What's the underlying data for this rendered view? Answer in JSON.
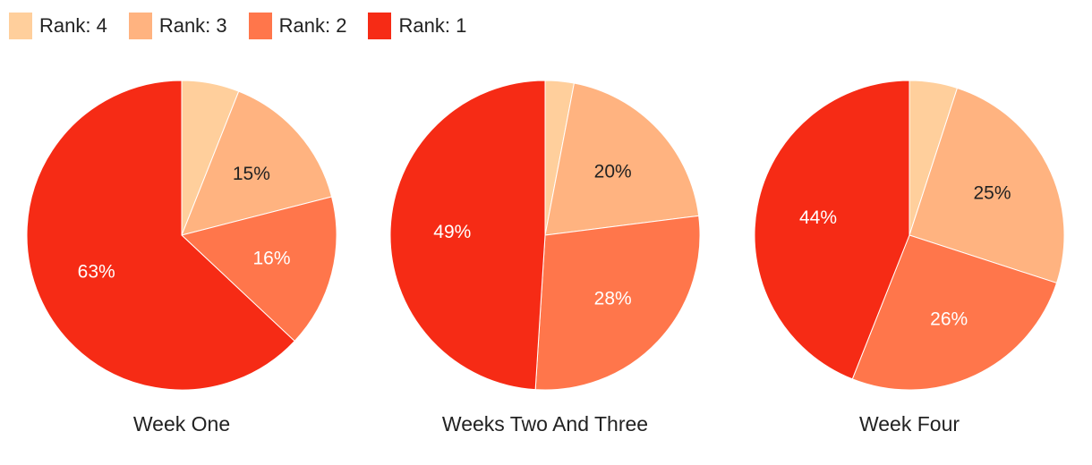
{
  "chart_data": [
    {
      "type": "pie",
      "title": "Week One",
      "slices": [
        {
          "label": "Rank: 4",
          "value": 6
        },
        {
          "label": "Rank: 3",
          "value": 15
        },
        {
          "label": "Rank: 2",
          "value": 16
        },
        {
          "label": "Rank: 1",
          "value": 63
        }
      ],
      "data_labels": [
        "",
        "15%",
        "16%",
        "63%"
      ]
    },
    {
      "type": "pie",
      "title": "Weeks Two And Three",
      "slices": [
        {
          "label": "Rank: 4",
          "value": 3
        },
        {
          "label": "Rank: 3",
          "value": 20
        },
        {
          "label": "Rank: 2",
          "value": 28
        },
        {
          "label": "Rank: 1",
          "value": 49
        }
      ],
      "data_labels": [
        "",
        "20%",
        "28%",
        "49%"
      ]
    },
    {
      "type": "pie",
      "title": "Week Four",
      "slices": [
        {
          "label": "Rank: 4",
          "value": 5
        },
        {
          "label": "Rank: 3",
          "value": 25
        },
        {
          "label": "Rank: 2",
          "value": 26
        },
        {
          "label": "Rank: 1",
          "value": 44
        }
      ],
      "data_labels": [
        "",
        "25%",
        "26%",
        "44%"
      ]
    }
  ],
  "legend": {
    "items": [
      {
        "label": "Rank: 4",
        "color": "#FFCF9C"
      },
      {
        "label": "Rank: 3",
        "color": "#FFB380"
      },
      {
        "label": "Rank: 2",
        "color": "#FF764B"
      },
      {
        "label": "Rank: 1",
        "color": "#F62B15"
      }
    ]
  },
  "label_colors": {
    "Rank: 4": "#222222",
    "Rank: 3": "#222222",
    "Rank: 2": "#ffffff",
    "Rank: 1": "#ffffff"
  }
}
